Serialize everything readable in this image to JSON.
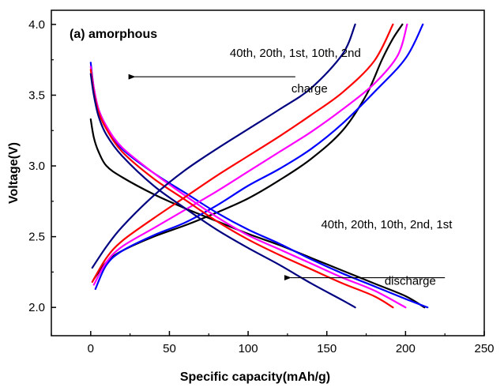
{
  "chart_data": {
    "type": "line",
    "title": "(a) amorphous",
    "xlabel": "Specific capacity(mAh/g)",
    "ylabel": "Voltage(V)",
    "xlim": [
      -25,
      250
    ],
    "ylim": [
      1.8,
      4.1
    ],
    "xticks": [
      0,
      50,
      100,
      150,
      200,
      250
    ],
    "yticks": [
      2.0,
      2.5,
      3.0,
      3.5,
      4.0
    ],
    "xtick_labels": [
      "0",
      "50",
      "100",
      "150",
      "200",
      "250"
    ],
    "ytick_labels": [
      "2.0",
      "2.5",
      "3.0",
      "3.5",
      "4.0"
    ],
    "series": [
      {
        "name": "1st",
        "color": "#000000",
        "charge": [
          [
            2,
            2.2
          ],
          [
            10,
            2.32
          ],
          [
            20,
            2.4
          ],
          [
            40,
            2.5
          ],
          [
            60,
            2.58
          ],
          [
            80,
            2.67
          ],
          [
            100,
            2.77
          ],
          [
            120,
            2.9
          ],
          [
            140,
            3.05
          ],
          [
            160,
            3.25
          ],
          [
            175,
            3.5
          ],
          [
            185,
            3.75
          ],
          [
            192,
            3.9
          ],
          [
            198,
            4.0
          ]
        ],
        "discharge": [
          [
            0,
            3.33
          ],
          [
            2,
            3.2
          ],
          [
            5,
            3.1
          ],
          [
            10,
            3.0
          ],
          [
            20,
            2.92
          ],
          [
            40,
            2.8
          ],
          [
            60,
            2.7
          ],
          [
            80,
            2.61
          ],
          [
            100,
            2.52
          ],
          [
            120,
            2.44
          ],
          [
            140,
            2.35
          ],
          [
            160,
            2.26
          ],
          [
            180,
            2.17
          ],
          [
            200,
            2.08
          ],
          [
            212,
            2.0
          ]
        ]
      },
      {
        "name": "2nd",
        "color": "#0000ff",
        "charge": [
          [
            3,
            2.13
          ],
          [
            10,
            2.3
          ],
          [
            20,
            2.4
          ],
          [
            40,
            2.51
          ],
          [
            60,
            2.6
          ],
          [
            80,
            2.72
          ],
          [
            100,
            2.86
          ],
          [
            120,
            2.98
          ],
          [
            140,
            3.12
          ],
          [
            160,
            3.3
          ],
          [
            180,
            3.52
          ],
          [
            200,
            3.76
          ],
          [
            211,
            4.0
          ]
        ],
        "discharge": [
          [
            0,
            3.73
          ],
          [
            2,
            3.55
          ],
          [
            5,
            3.4
          ],
          [
            10,
            3.28
          ],
          [
            20,
            3.12
          ],
          [
            40,
            2.95
          ],
          [
            60,
            2.81
          ],
          [
            80,
            2.67
          ],
          [
            100,
            2.55
          ],
          [
            120,
            2.45
          ],
          [
            140,
            2.34
          ],
          [
            160,
            2.24
          ],
          [
            180,
            2.15
          ],
          [
            200,
            2.06
          ],
          [
            214,
            2.0
          ]
        ]
      },
      {
        "name": "10th",
        "color": "#ff00ff",
        "charge": [
          [
            2,
            2.16
          ],
          [
            10,
            2.32
          ],
          [
            20,
            2.43
          ],
          [
            40,
            2.56
          ],
          [
            60,
            2.69
          ],
          [
            80,
            2.82
          ],
          [
            100,
            2.96
          ],
          [
            120,
            3.1
          ],
          [
            140,
            3.24
          ],
          [
            160,
            3.4
          ],
          [
            180,
            3.58
          ],
          [
            195,
            3.78
          ],
          [
            201,
            4.0
          ]
        ],
        "discharge": [
          [
            0,
            3.7
          ],
          [
            2,
            3.55
          ],
          [
            5,
            3.4
          ],
          [
            10,
            3.28
          ],
          [
            20,
            3.13
          ],
          [
            40,
            2.95
          ],
          [
            60,
            2.79
          ],
          [
            80,
            2.64
          ],
          [
            100,
            2.51
          ],
          [
            120,
            2.41
          ],
          [
            140,
            2.31
          ],
          [
            160,
            2.21
          ],
          [
            180,
            2.12
          ],
          [
            200,
            2.0
          ]
        ]
      },
      {
        "name": "20th",
        "color": "#ff0000",
        "charge": [
          [
            1,
            2.18
          ],
          [
            10,
            2.35
          ],
          [
            20,
            2.47
          ],
          [
            40,
            2.63
          ],
          [
            60,
            2.78
          ],
          [
            80,
            2.93
          ],
          [
            100,
            3.07
          ],
          [
            120,
            3.21
          ],
          [
            140,
            3.36
          ],
          [
            160,
            3.52
          ],
          [
            180,
            3.74
          ],
          [
            192,
            4.0
          ]
        ],
        "discharge": [
          [
            0,
            3.68
          ],
          [
            2,
            3.52
          ],
          [
            5,
            3.38
          ],
          [
            10,
            3.26
          ],
          [
            20,
            3.1
          ],
          [
            40,
            2.91
          ],
          [
            60,
            2.76
          ],
          [
            80,
            2.61
          ],
          [
            100,
            2.48
          ],
          [
            120,
            2.37
          ],
          [
            140,
            2.27
          ],
          [
            160,
            2.17
          ],
          [
            180,
            2.08
          ],
          [
            192,
            2.0
          ]
        ]
      },
      {
        "name": "40th",
        "color": "#000080",
        "charge": [
          [
            1,
            2.28
          ],
          [
            10,
            2.43
          ],
          [
            20,
            2.57
          ],
          [
            40,
            2.79
          ],
          [
            60,
            2.97
          ],
          [
            80,
            3.12
          ],
          [
            100,
            3.26
          ],
          [
            120,
            3.4
          ],
          [
            140,
            3.55
          ],
          [
            160,
            3.79
          ],
          [
            168,
            4.0
          ]
        ],
        "discharge": [
          [
            0,
            3.65
          ],
          [
            2,
            3.5
          ],
          [
            5,
            3.35
          ],
          [
            10,
            3.22
          ],
          [
            20,
            3.07
          ],
          [
            40,
            2.86
          ],
          [
            60,
            2.7
          ],
          [
            80,
            2.55
          ],
          [
            100,
            2.42
          ],
          [
            120,
            2.3
          ],
          [
            140,
            2.17
          ],
          [
            160,
            2.05
          ],
          [
            168,
            2.0
          ]
        ]
      }
    ],
    "annotations": [
      {
        "text": "40th, 20th, 1st, 10th, 2nd",
        "x": 130,
        "y": 3.77
      },
      {
        "text": "charge",
        "x": 139,
        "y": 3.52
      },
      {
        "text": "40th, 20th, 10th, 2nd, 1st",
        "x": 188,
        "y": 2.56
      },
      {
        "text": "discharge",
        "x": 203,
        "y": 2.16
      }
    ],
    "arrows": [
      {
        "name": "charge-arrow",
        "from": [
          130,
          3.63
        ],
        "to": [
          28,
          3.63
        ]
      },
      {
        "name": "discharge-arrow",
        "from": [
          225,
          2.21
        ],
        "to": [
          127,
          2.21
        ]
      }
    ]
  }
}
